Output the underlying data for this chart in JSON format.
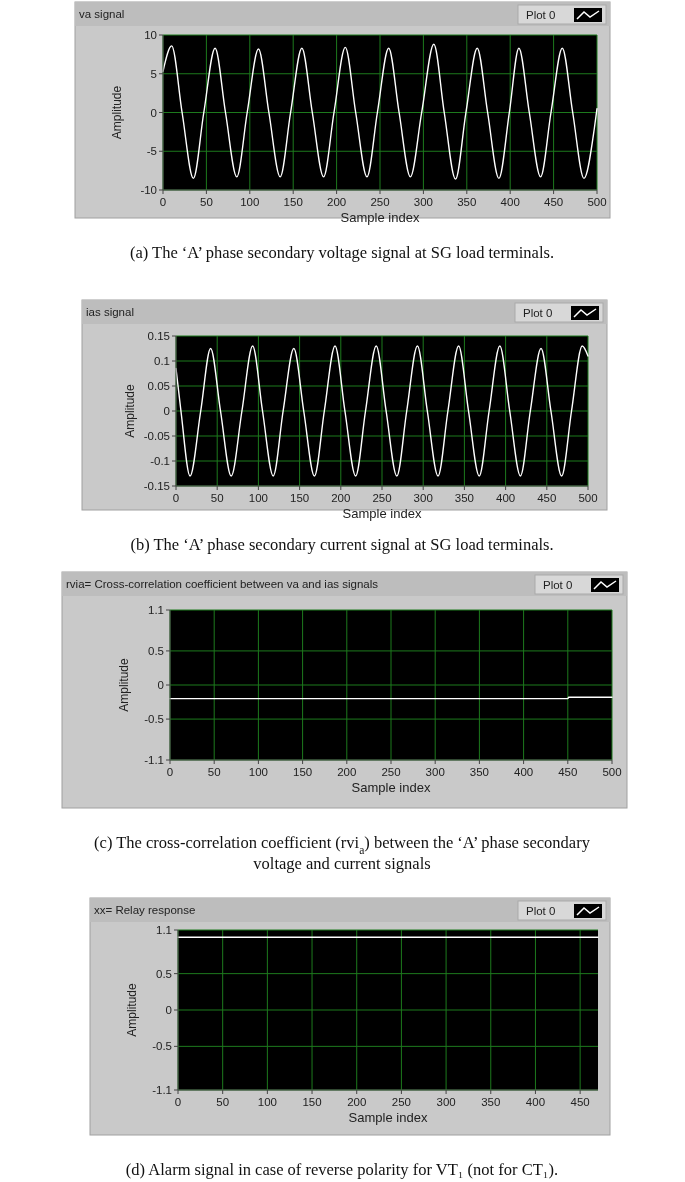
{
  "chart_data": [
    {
      "type": "line",
      "title": "va signal",
      "xlabel": "Sample index",
      "ylabel": "Amplitude",
      "xlim": [
        0,
        500
      ],
      "xticks": [
        0,
        50,
        100,
        150,
        200,
        250,
        300,
        350,
        400,
        450,
        500
      ],
      "ylim": [
        -10,
        10
      ],
      "yticks": [
        -10,
        -5,
        0,
        5,
        10
      ],
      "grid": true,
      "legend": "top right",
      "annotations": [
        "(a) The ‘A’ phase secondary voltage signal at SG load terminals."
      ],
      "series": [
        {
          "name": "Plot 0",
          "color": "#ffffff",
          "x": [
            0,
            10,
            22,
            35,
            47,
            60,
            72,
            85,
            97,
            110,
            122,
            135,
            147,
            160,
            172,
            185,
            197,
            210,
            222,
            235,
            247,
            260,
            272,
            285,
            298,
            312,
            324,
            337,
            349,
            362,
            374,
            387,
            399,
            410,
            422,
            435,
            447,
            460,
            472,
            485,
            497,
            500
          ],
          "values": [
            5.3,
            8.6,
            0,
            -8.5,
            0,
            8.3,
            0,
            -8.3,
            0,
            8.2,
            0,
            -8.3,
            0,
            8.3,
            0,
            -8.3,
            0,
            8.4,
            0,
            -8.3,
            0,
            8.3,
            0,
            -8.3,
            0,
            8.8,
            0,
            -8.6,
            0,
            8.3,
            0,
            -8.5,
            0,
            8.3,
            0,
            -8.3,
            0,
            8.3,
            0,
            -8.5,
            -2,
            0.5
          ]
        }
      ]
    },
    {
      "type": "line",
      "title": "ias signal",
      "xlabel": "Sample index",
      "ylabel": "Amplitude",
      "xlim": [
        0,
        500
      ],
      "xticks": [
        0,
        50,
        100,
        150,
        200,
        250,
        300,
        350,
        400,
        450,
        500
      ],
      "ylim": [
        -0.15,
        0.15
      ],
      "yticks": [
        -0.15,
        -0.1,
        -0.05,
        0,
        0.05,
        0.1,
        0.15
      ],
      "grid": true,
      "legend": "top right",
      "annotations": [
        "(b) The ‘A’ phase secondary current signal at SG load terminals."
      ],
      "series": [
        {
          "name": "Plot 0",
          "color": "#ffffff",
          "x": [
            0,
            6,
            17,
            30,
            42,
            54,
            67,
            80,
            93,
            105,
            118,
            130,
            143,
            155,
            168,
            180,
            193,
            205,
            218,
            230,
            243,
            255,
            268,
            280,
            293,
            305,
            318,
            330,
            343,
            355,
            368,
            380,
            393,
            405,
            418,
            430,
            443,
            455,
            468,
            480,
            493,
            500
          ],
          "values": [
            0.085,
            0,
            -0.13,
            0,
            0.125,
            0,
            -0.13,
            0,
            0.13,
            0,
            -0.13,
            0,
            0.125,
            0,
            -0.13,
            0,
            0.13,
            0,
            -0.13,
            0,
            0.13,
            0,
            -0.13,
            0,
            0.13,
            0,
            -0.13,
            0,
            0.13,
            0,
            -0.13,
            0,
            0.13,
            0,
            -0.13,
            0,
            0.125,
            0,
            -0.13,
            0,
            0.13,
            0.11
          ]
        }
      ]
    },
    {
      "type": "line",
      "title": "rvia= Cross-correlation coefficient between va and ias signals",
      "xlabel": "Sample index",
      "ylabel": "Amplitude",
      "xlim": [
        0,
        500
      ],
      "xticks": [
        0,
        50,
        100,
        150,
        200,
        250,
        300,
        350,
        400,
        450,
        500
      ],
      "ylim": [
        -1.1,
        1.1
      ],
      "yticks": [
        -1.1,
        -0.5,
        0,
        0.5,
        1.1
      ],
      "grid": true,
      "legend": "top right",
      "annotations": [
        "(c) The cross-correlation coefficient (rvi$_{a}$) between the ‘A’ phase secondary voltage and current signals"
      ],
      "series": [
        {
          "name": "Plot 0",
          "color": "#ffffff",
          "x": [
            0,
            450,
            451,
            500
          ],
          "values": [
            -0.2,
            -0.2,
            -0.18,
            -0.18
          ]
        }
      ]
    },
    {
      "type": "line",
      "title": "xx= Relay response",
      "xlabel": "Sample index",
      "ylabel": "Amplitude",
      "xlim": [
        0,
        470
      ],
      "xticks": [
        0,
        50,
        100,
        150,
        200,
        250,
        300,
        350,
        400,
        450
      ],
      "ylim": [
        -1.1,
        1.1
      ],
      "yticks": [
        -1.1,
        -0.5,
        0,
        0.5,
        1.1
      ],
      "grid": true,
      "legend": "top right",
      "annotations": [
        "(d)  Alarm signal in case of reverse polarity for VT₁ (not for CT₁)."
      ],
      "series": [
        {
          "name": "Plot 0",
          "color": "#ffffff",
          "x": [
            0,
            470
          ],
          "values": [
            1,
            1
          ]
        }
      ]
    }
  ]
}
